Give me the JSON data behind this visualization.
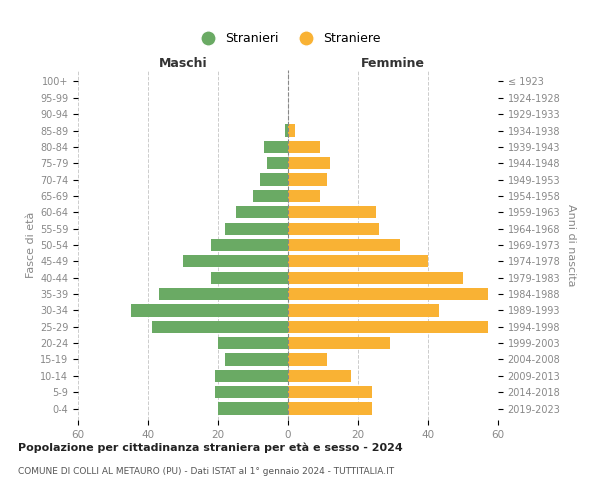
{
  "age_groups": [
    "100+",
    "95-99",
    "90-94",
    "85-89",
    "80-84",
    "75-79",
    "70-74",
    "65-69",
    "60-64",
    "55-59",
    "50-54",
    "45-49",
    "40-44",
    "35-39",
    "30-34",
    "25-29",
    "20-24",
    "15-19",
    "10-14",
    "5-9",
    "0-4"
  ],
  "birth_years": [
    "≤ 1923",
    "1924-1928",
    "1929-1933",
    "1934-1938",
    "1939-1943",
    "1944-1948",
    "1949-1953",
    "1954-1958",
    "1959-1963",
    "1964-1968",
    "1969-1973",
    "1974-1978",
    "1979-1983",
    "1984-1988",
    "1989-1993",
    "1994-1998",
    "1999-2003",
    "2004-2008",
    "2009-2013",
    "2014-2018",
    "2019-2023"
  ],
  "maschi": [
    0,
    0,
    0,
    1,
    7,
    6,
    8,
    10,
    15,
    18,
    22,
    30,
    22,
    37,
    45,
    39,
    20,
    18,
    21,
    21,
    20
  ],
  "femmine": [
    0,
    0,
    0,
    2,
    9,
    12,
    11,
    9,
    25,
    26,
    32,
    40,
    50,
    57,
    43,
    57,
    29,
    11,
    18,
    24,
    24
  ],
  "color_maschi": "#6aaa64",
  "color_femmine": "#f9b234",
  "maschi_header": "Maschi",
  "femmine_header": "Femmine",
  "ylabel_left": "Fasce di età",
  "ylabel_right": "Anni di nascita",
  "xlim": 60,
  "legend_maschi": "Stranieri",
  "legend_femmine": "Straniere",
  "chart_title": "Popolazione per cittadinanza straniera per età e sesso - 2024",
  "chart_subtitle": "COMUNE DI COLLI AL METAURO (PU) - Dati ISTAT al 1° gennaio 2024 - TUTTITALIA.IT",
  "bg_color": "#ffffff",
  "grid_color": "#cccccc",
  "center_line_color": "#888888",
  "tick_color": "#888888"
}
